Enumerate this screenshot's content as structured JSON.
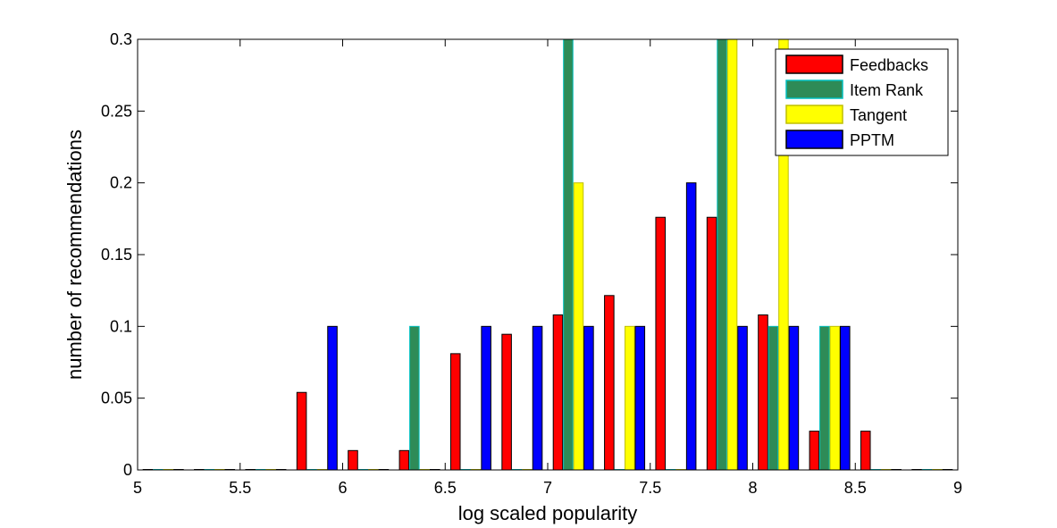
{
  "chart_data": {
    "type": "bar",
    "title": "",
    "xlabel": "log scaled popularity",
    "ylabel": "number of recommendations",
    "xlim": [
      5,
      9
    ],
    "ylim": [
      0,
      0.3
    ],
    "xticks": [
      "5",
      "5.5",
      "6",
      "6.5",
      "7",
      "7.5",
      "8",
      "8.5",
      "9"
    ],
    "yticks": [
      "0",
      "0.05",
      "0.1",
      "0.15",
      "0.2",
      "0.25",
      "0.3"
    ],
    "grid": false,
    "legend_position": "top-right",
    "bin_width": 0.25,
    "bin_centers": [
      5.125,
      5.375,
      5.625,
      5.875,
      6.125,
      6.375,
      6.625,
      6.875,
      7.125,
      7.375,
      7.625,
      7.875,
      8.125,
      8.375,
      8.625,
      8.875
    ],
    "series": [
      {
        "name": "Feedbacks",
        "color": "#ff0000",
        "edge": "#000000",
        "x": [
          5.05,
          5.3,
          5.55,
          5.8,
          6.05,
          6.3,
          6.55,
          6.8,
          7.05,
          7.3,
          7.55,
          7.8,
          8.05,
          8.3,
          8.55,
          8.8
        ],
        "values": [
          0,
          0,
          0,
          0.054,
          0.0135,
          0.0135,
          0.081,
          0.0945,
          0.108,
          0.1215,
          0.176,
          0.176,
          0.108,
          0.027,
          0.027,
          0
        ]
      },
      {
        "name": "Item Rank",
        "color": "#2e8b57",
        "edge": "#00bfbf",
        "x": [
          5.1,
          5.35,
          5.6,
          5.85,
          6.1,
          6.35,
          6.6,
          6.85,
          7.1,
          7.35,
          7.6,
          7.85,
          8.1,
          8.35,
          8.6,
          8.85
        ],
        "values": [
          0,
          0,
          0,
          0,
          0,
          0.1,
          0,
          0,
          0.3,
          0,
          0,
          0.3,
          0.1,
          0.1,
          0,
          0
        ]
      },
      {
        "name": "Tangent",
        "color": "#ffff00",
        "edge": "#bfbf00",
        "x": [
          5.15,
          5.4,
          5.65,
          5.9,
          6.15,
          6.4,
          6.65,
          6.9,
          7.15,
          7.4,
          7.65,
          7.9,
          8.15,
          8.4,
          8.65,
          8.9
        ],
        "values": [
          0,
          0,
          0,
          0,
          0,
          0,
          0,
          0,
          0.2,
          0.1,
          0,
          0.3,
          0.3,
          0.1,
          0,
          0
        ]
      },
      {
        "name": "PPTM",
        "color": "#0000ff",
        "edge": "#000000",
        "x": [
          5.2,
          5.45,
          5.7,
          5.95,
          6.2,
          6.45,
          6.7,
          6.95,
          7.2,
          7.45,
          7.7,
          7.95,
          8.2,
          8.45,
          8.7,
          8.95
        ],
        "values": [
          0,
          0,
          0,
          0.1,
          0,
          0,
          0.1,
          0.1,
          0.1,
          0.1,
          0.2,
          0.1,
          0.1,
          0.1,
          0,
          0
        ]
      }
    ]
  }
}
